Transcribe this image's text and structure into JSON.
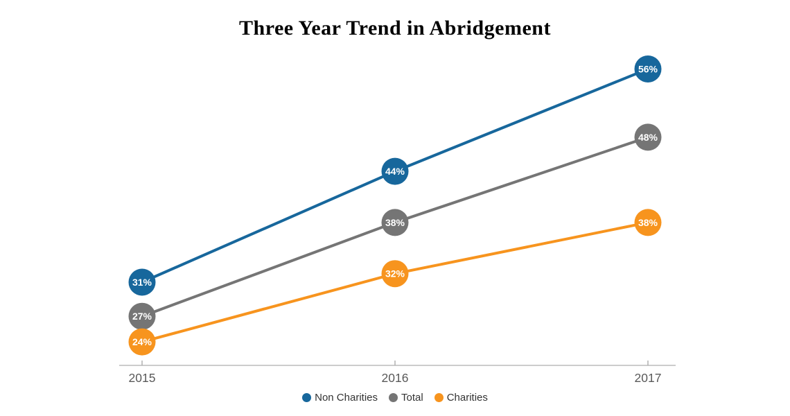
{
  "chart_data": {
    "type": "line",
    "title": "Three Year Trend in Abridgement",
    "categories": [
      "2015",
      "2016",
      "2017"
    ],
    "series": [
      {
        "name": "Non Charities",
        "color": "#17679C",
        "values": [
          31,
          44,
          56
        ]
      },
      {
        "name": "Total",
        "color": "#757575",
        "values": [
          27,
          38,
          48
        ]
      },
      {
        "name": "Charities",
        "color": "#F7941E",
        "values": [
          24,
          32,
          38
        ]
      }
    ],
    "value_suffix": "%",
    "xlabel": "",
    "ylabel": "",
    "ylim": [
      20,
      60
    ],
    "grid": false,
    "legend_position": "bottom",
    "data_labels": "inside-point",
    "axis_color": "#cccccc",
    "tick_color": "#b0b0b0",
    "tick_label_color": "#595959",
    "data_label_color": "#ffffff",
    "legend_text_color": "#333333",
    "background_color": "#ffffff"
  }
}
